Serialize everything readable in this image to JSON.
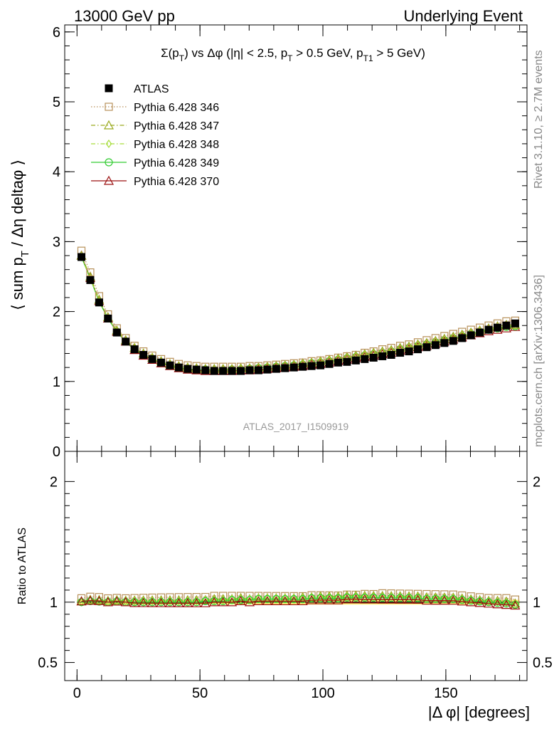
{
  "header": {
    "left": "13000 GeV pp",
    "right": "Underlying Event"
  },
  "side_labels": {
    "rivet": "Rivet 3.1.10, ≥ 2.7M events",
    "mcplots": "mcplots.cern.ch [arXiv:1306.3436]"
  },
  "watermark": "ATLAS_2017_I1509919",
  "chart_data": [
    {
      "type": "line",
      "title": "Σ(p_T) vs Δφ (|η| < 2.5, p_T > 0.5 GeV, p_T1 > 5 GeV)",
      "title_parts": {
        "a": "Σ(p",
        "a_sub": "T",
        "b": ") vs Δφ (|η| < 2.5, p",
        "b_sub": "T",
        "c": " > 0.5 GeV, p",
        "c_sub": "T1",
        "d": " > 5 GeV)"
      },
      "ylabel": "⟨ sum p_T / Δη deltaφ ⟩",
      "ylabel_parts": {
        "a": "⟨ sum p",
        "sub": "T",
        "b": " / Δη deltaφ ⟩"
      },
      "xlim": [
        -5,
        183
      ],
      "ylim": [
        0,
        6.1
      ],
      "yticks": [
        "0",
        "1",
        "2",
        "3",
        "4",
        "5",
        "6"
      ],
      "legend_placement": "top-left",
      "x": [
        1.8,
        5.4,
        9.0,
        12.6,
        16.2,
        19.8,
        23.4,
        27.0,
        30.6,
        34.2,
        37.8,
        41.4,
        45.0,
        48.6,
        52.2,
        55.8,
        59.4,
        63.0,
        66.6,
        70.2,
        73.8,
        77.4,
        81.0,
        84.6,
        88.2,
        91.8,
        95.4,
        99.0,
        102.6,
        106.2,
        109.8,
        113.4,
        117.0,
        120.6,
        124.2,
        127.8,
        131.4,
        135.0,
        138.6,
        142.2,
        145.8,
        149.4,
        153.0,
        156.6,
        160.2,
        163.8,
        167.4,
        171.0,
        174.6,
        178.2
      ],
      "series": [
        {
          "name": "ATLAS",
          "color": "#000000",
          "marker": "square-filled",
          "line": "none",
          "values": [
            2.78,
            2.45,
            2.13,
            1.9,
            1.7,
            1.57,
            1.46,
            1.38,
            1.32,
            1.27,
            1.23,
            1.2,
            1.18,
            1.17,
            1.16,
            1.15,
            1.15,
            1.15,
            1.15,
            1.16,
            1.16,
            1.17,
            1.18,
            1.19,
            1.2,
            1.21,
            1.22,
            1.23,
            1.25,
            1.27,
            1.28,
            1.3,
            1.32,
            1.34,
            1.36,
            1.38,
            1.41,
            1.43,
            1.46,
            1.49,
            1.52,
            1.55,
            1.58,
            1.62,
            1.66,
            1.7,
            1.74,
            1.77,
            1.8,
            1.83
          ]
        },
        {
          "name": "Pythia 6.428 346",
          "color": "#b8915a",
          "marker": "square-open",
          "line": "dotted",
          "values": [
            2.87,
            2.56,
            2.22,
            1.96,
            1.76,
            1.62,
            1.51,
            1.43,
            1.37,
            1.32,
            1.28,
            1.25,
            1.23,
            1.22,
            1.21,
            1.21,
            1.21,
            1.21,
            1.21,
            1.22,
            1.22,
            1.23,
            1.24,
            1.25,
            1.26,
            1.27,
            1.29,
            1.3,
            1.32,
            1.34,
            1.36,
            1.38,
            1.41,
            1.43,
            1.46,
            1.48,
            1.51,
            1.53,
            1.56,
            1.59,
            1.62,
            1.65,
            1.68,
            1.71,
            1.74,
            1.77,
            1.8,
            1.83,
            1.86,
            1.87
          ]
        },
        {
          "name": "Pythia 6.428 347",
          "color": "#9aaa1e",
          "marker": "triangle-open",
          "line": "dashdot",
          "values": [
            2.8,
            2.5,
            2.17,
            1.92,
            1.73,
            1.59,
            1.48,
            1.4,
            1.34,
            1.29,
            1.25,
            1.22,
            1.2,
            1.19,
            1.18,
            1.18,
            1.18,
            1.18,
            1.19,
            1.19,
            1.2,
            1.21,
            1.22,
            1.23,
            1.24,
            1.26,
            1.27,
            1.29,
            1.31,
            1.33,
            1.35,
            1.37,
            1.39,
            1.41,
            1.43,
            1.45,
            1.48,
            1.5,
            1.53,
            1.55,
            1.58,
            1.61,
            1.64,
            1.67,
            1.7,
            1.73,
            1.76,
            1.79,
            1.81,
            1.81
          ]
        },
        {
          "name": "Pythia 6.428 348",
          "color": "#a6dd3a",
          "marker": "diamond-open",
          "line": "dashdot",
          "values": [
            2.78,
            2.48,
            2.15,
            1.91,
            1.72,
            1.58,
            1.47,
            1.39,
            1.33,
            1.28,
            1.24,
            1.21,
            1.19,
            1.18,
            1.18,
            1.17,
            1.17,
            1.18,
            1.18,
            1.19,
            1.2,
            1.21,
            1.22,
            1.23,
            1.24,
            1.25,
            1.27,
            1.28,
            1.3,
            1.32,
            1.34,
            1.36,
            1.38,
            1.4,
            1.42,
            1.44,
            1.47,
            1.49,
            1.52,
            1.54,
            1.57,
            1.6,
            1.63,
            1.66,
            1.69,
            1.72,
            1.75,
            1.77,
            1.79,
            1.8
          ]
        },
        {
          "name": "Pythia 6.428 349",
          "color": "#33cc33",
          "marker": "circle-open",
          "line": "solid",
          "values": [
            2.78,
            2.47,
            2.14,
            1.9,
            1.71,
            1.57,
            1.46,
            1.38,
            1.32,
            1.27,
            1.23,
            1.2,
            1.18,
            1.17,
            1.17,
            1.16,
            1.16,
            1.17,
            1.17,
            1.18,
            1.19,
            1.2,
            1.21,
            1.22,
            1.23,
            1.24,
            1.26,
            1.27,
            1.29,
            1.31,
            1.33,
            1.35,
            1.37,
            1.39,
            1.41,
            1.43,
            1.46,
            1.48,
            1.51,
            1.53,
            1.56,
            1.59,
            1.62,
            1.65,
            1.68,
            1.71,
            1.74,
            1.76,
            1.78,
            1.79
          ]
        },
        {
          "name": "Pythia 6.428 370",
          "color": "#9b1010",
          "marker": "triangle-open",
          "line": "solid",
          "values": [
            2.8,
            2.48,
            2.15,
            1.9,
            1.71,
            1.57,
            1.45,
            1.37,
            1.31,
            1.26,
            1.22,
            1.19,
            1.17,
            1.16,
            1.15,
            1.15,
            1.15,
            1.15,
            1.16,
            1.16,
            1.17,
            1.18,
            1.19,
            1.2,
            1.21,
            1.22,
            1.24,
            1.25,
            1.27,
            1.29,
            1.31,
            1.33,
            1.35,
            1.37,
            1.39,
            1.41,
            1.44,
            1.46,
            1.49,
            1.51,
            1.54,
            1.57,
            1.6,
            1.63,
            1.66,
            1.69,
            1.72,
            1.74,
            1.76,
            1.78
          ]
        }
      ]
    },
    {
      "type": "line",
      "ylabel": "Ratio to ATLAS",
      "xlabel": "|Δ φ| [degrees]",
      "xlim": [
        -5,
        183
      ],
      "ylim": [
        0.35,
        2.25
      ],
      "yticks": [
        "0.5",
        "1",
        "2"
      ],
      "xticks": [
        "0",
        "50",
        "100",
        "150"
      ],
      "reference_band": {
        "color": "#ffee44",
        "half_width": 0.02
      },
      "ratio_series": [
        "Pythia 6.428 346",
        "Pythia 6.428 347",
        "Pythia 6.428 348",
        "Pythia 6.428 349",
        "Pythia 6.428 370"
      ]
    }
  ]
}
